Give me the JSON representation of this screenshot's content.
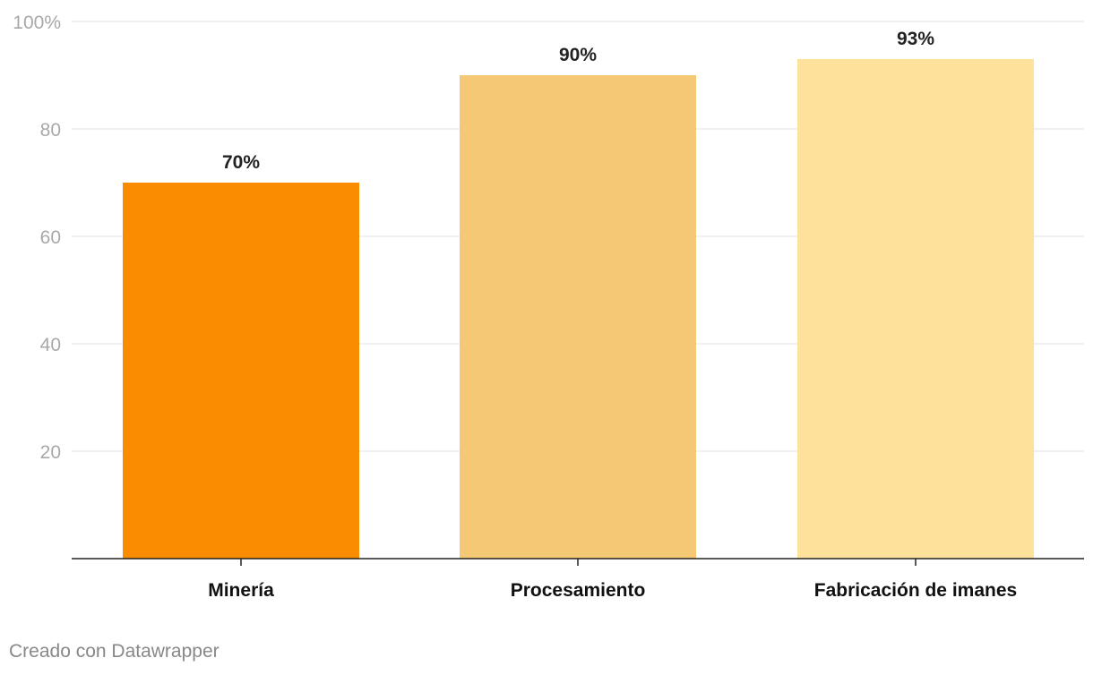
{
  "chart_data": {
    "type": "bar",
    "categories": [
      "Minería",
      "Procesamiento",
      "Fabricación de imanes"
    ],
    "values": [
      70,
      90,
      93
    ],
    "value_labels": [
      "70%",
      "90%",
      "93%"
    ],
    "bar_colors": [
      "#f98c00",
      "#f5c875",
      "#fee29b"
    ],
    "ylim": [
      0,
      100
    ],
    "y_ticks": [
      {
        "value": 20,
        "label": "20"
      },
      {
        "value": 40,
        "label": "40"
      },
      {
        "value": 60,
        "label": "60"
      },
      {
        "value": 80,
        "label": "80"
      },
      {
        "value": 100,
        "label": "100%"
      }
    ],
    "grid": true,
    "title": "",
    "xlabel": "",
    "ylabel": ""
  },
  "footer": {
    "credit": "Creado con Datawrapper"
  },
  "colors": {
    "grid": "#e2e2e2",
    "axis": "#222222",
    "tick_label": "#a8a8a8",
    "value_label": "#222222",
    "category_label": "#111111",
    "credit": "#888888"
  }
}
